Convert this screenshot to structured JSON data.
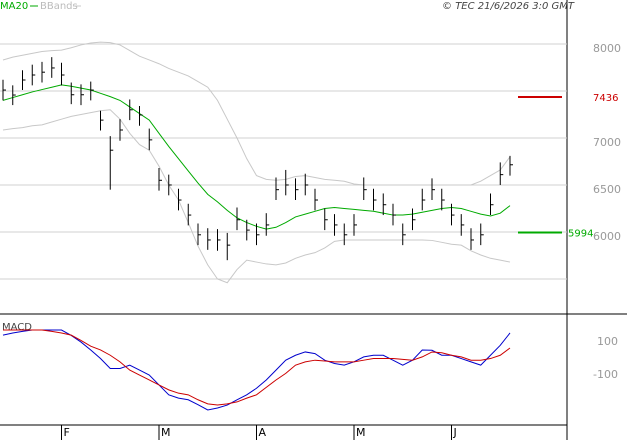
{
  "chart_data": [
    {
      "type": "ohlc",
      "source": "© TEC 21/6/2026 3:0 GMT",
      "ylim": [
        5138,
        8468
      ],
      "yticks": [
        6000,
        6500,
        7000,
        8000
      ],
      "grid_lines": [
        5500,
        6000,
        6500,
        7000,
        7500,
        8000
      ],
      "grid": true,
      "bar_color": "#000000",
      "high": [
        7620,
        7560,
        7720,
        7780,
        7810,
        7860,
        7800,
        7590,
        7570,
        7600,
        7290,
        7020,
        7200,
        7410,
        7340,
        7100,
        6680,
        6610,
        6460,
        6300,
        6090,
        6040,
        6030,
        5990,
        6260,
        6130,
        6090,
        6200,
        6580,
        6660,
        6570,
        6620,
        6460,
        6250,
        6190,
        6090,
        6190,
        6580,
        6460,
        6410,
        6300,
        6090,
        6250,
        6460,
        6570,
        6460,
        6300,
        6190,
        6040,
        6090,
        6410,
        6740,
        6810
      ],
      "low": [
        7400,
        7350,
        7510,
        7560,
        7590,
        7640,
        7560,
        7360,
        7350,
        7400,
        7080,
        6450,
        6970,
        7190,
        7130,
        6870,
        6440,
        6390,
        6230,
        6070,
        5860,
        5810,
        5800,
        5700,
        6020,
        5910,
        5860,
        5960,
        6340,
        6390,
        6340,
        6390,
        6230,
        6020,
        5960,
        5860,
        5960,
        6340,
        6230,
        6180,
        6070,
        5860,
        6020,
        6230,
        6340,
        6230,
        6070,
        5960,
        5810,
        5860,
        6180,
        6500,
        6600
      ],
      "close": [
        7510,
        7457,
        7617,
        7670,
        7700,
        7745,
        7670,
        7460,
        7460,
        7510,
        7190,
        6870,
        7085,
        7300,
        7245,
        6980,
        6550,
        6500,
        6340,
        6180,
        5970,
        5915,
        5915,
        5860,
        6130,
        6020,
        5970,
        6075,
        6450,
        6500,
        6450,
        6500,
        6340,
        6130,
        6075,
        5970,
        6075,
        6450,
        6340,
        6290,
        6180,
        5970,
        6130,
        6340,
        6450,
        6340,
        6180,
        6075,
        5915,
        5970,
        6290,
        6610,
        6715
      ],
      "series": [
        {
          "name": "MA20",
          "color": "#00aa00",
          "values": [
            7400,
            7430,
            7460,
            7490,
            7515,
            7540,
            7565,
            7550,
            7530,
            7510,
            7475,
            7440,
            7400,
            7330,
            7260,
            7190,
            7050,
            6910,
            6780,
            6650,
            6520,
            6400,
            6320,
            6230,
            6150,
            6100,
            6060,
            6030,
            6050,
            6100,
            6160,
            6190,
            6220,
            6250,
            6260,
            6250,
            6240,
            6230,
            6220,
            6200,
            6180,
            6180,
            6190,
            6210,
            6230,
            6250,
            6260,
            6250,
            6220,
            6190,
            6170,
            6200,
            6280
          ]
        },
        {
          "name": "BBands",
          "color": "#c8c8c8",
          "upper": [
            7830,
            7860,
            7880,
            7900,
            7920,
            7930,
            7935,
            7960,
            7990,
            8010,
            8020,
            8015,
            7990,
            7930,
            7870,
            7830,
            7790,
            7740,
            7700,
            7660,
            7600,
            7540,
            7400,
            7200,
            7000,
            6780,
            6600,
            6560,
            6550,
            6560,
            6590,
            6600,
            6580,
            6560,
            6550,
            6540,
            6510,
            6500,
            6500,
            6500,
            6500,
            6500,
            6500,
            6500,
            6500,
            6500,
            6500,
            6500,
            6500,
            6540,
            6600,
            6660,
            6800
          ],
          "lower": [
            7085,
            7100,
            7110,
            7130,
            7140,
            7170,
            7200,
            7230,
            7250,
            7270,
            7290,
            7300,
            7200,
            7050,
            6930,
            6870,
            6700,
            6500,
            6340,
            6100,
            5850,
            5650,
            5500,
            5460,
            5600,
            5700,
            5680,
            5660,
            5650,
            5670,
            5720,
            5755,
            5780,
            5830,
            5900,
            5915,
            5915,
            5915,
            5915,
            5915,
            5915,
            5915,
            5915,
            5915,
            5910,
            5890,
            5870,
            5860,
            5800,
            5755,
            5720,
            5700,
            5680
          ]
        }
      ],
      "levels": [
        {
          "value": 7436,
          "color": "#cc0000"
        },
        {
          "value": 5994,
          "color": "#00aa00"
        }
      ]
    },
    {
      "type": "line",
      "title": "MACD",
      "categories": [
        null,
        null,
        null,
        null,
        null,
        null,
        "F",
        null,
        null,
        null,
        null,
        null,
        null,
        null,
        null,
        null,
        "M",
        null,
        null,
        null,
        null,
        null,
        null,
        null,
        null,
        null,
        "A",
        null,
        null,
        null,
        null,
        null,
        null,
        null,
        null,
        null,
        "M",
        null,
        null,
        null,
        null,
        null,
        null,
        null,
        null,
        null,
        "J",
        null,
        null,
        null,
        null,
        null,
        null
      ],
      "ylim": [
        -403,
        258
      ],
      "yticks": [
        100,
        -100
      ],
      "series": [
        {
          "color": "#0000cc",
          "values": [
            142,
            155,
            165,
            173,
            173,
            173,
            173,
            140,
            100,
            52,
            0,
            -60,
            -60,
            -40,
            -70,
            -100,
            -160,
            -220,
            -240,
            -250,
            -280,
            -312,
            -300,
            -282,
            -250,
            -220,
            -180,
            -130,
            -70,
            -10,
            20,
            40,
            30,
            -10,
            -30,
            -40,
            -20,
            10,
            20,
            20,
            -10,
            -40,
            -10,
            52,
            50,
            20,
            20,
            0,
            -20,
            -40,
            20,
            80,
            155
          ]
        },
        {
          "color": "#cc0000",
          "values": [
            173,
            173,
            173,
            173,
            173,
            165,
            155,
            142,
            110,
            75,
            52,
            20,
            -20,
            -70,
            -100,
            -130,
            -160,
            -190,
            -210,
            -220,
            -250,
            -275,
            -282,
            -275,
            -263,
            -240,
            -220,
            -175,
            -130,
            -90,
            -40,
            -20,
            -10,
            -15,
            -20,
            -20,
            -20,
            -10,
            0,
            0,
            0,
            -5,
            -10,
            10,
            40,
            35,
            20,
            10,
            -10,
            -10,
            0,
            20,
            64
          ]
        }
      ]
    }
  ]
}
